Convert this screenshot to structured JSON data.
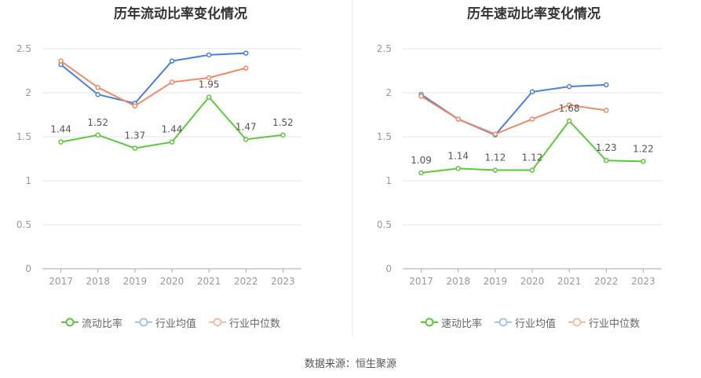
{
  "source_label": "数据来源：恒生聚源",
  "colors": {
    "primary": "#5cc93d",
    "avg": "#4a7fe0",
    "median": "#f08a63",
    "grid": "#e6e6e6",
    "axis": "#999999",
    "label": "#555555"
  },
  "chart_data": [
    {
      "type": "line",
      "title": "历年流动比率变化情况",
      "x": [
        "2017",
        "2018",
        "2019",
        "2020",
        "2021",
        "2022",
        "2023"
      ],
      "ylim": [
        0,
        2.5
      ],
      "yticks": [
        "0",
        "0.5",
        "1",
        "1.5",
        "2",
        "2.5"
      ],
      "grid": true,
      "legend_position": "bottom",
      "series": [
        {
          "name": "流动比率",
          "values": [
            1.44,
            1.52,
            1.37,
            1.44,
            1.95,
            1.47,
            1.52
          ],
          "labels": [
            "1.44",
            "1.52",
            "1.37",
            "1.44",
            "1.95",
            "1.47",
            "1.52"
          ],
          "color": "#5cc93d"
        },
        {
          "name": "行业均值",
          "values": [
            2.32,
            1.98,
            1.88,
            2.36,
            2.43,
            2.45,
            null
          ],
          "color": "#4a7fe0"
        },
        {
          "name": "行业中位数",
          "values": [
            2.36,
            2.06,
            1.85,
            2.12,
            2.17,
            2.28,
            null
          ],
          "color": "#f08a63"
        }
      ]
    },
    {
      "type": "line",
      "title": "历年速动比率变化情况",
      "x": [
        "2017",
        "2018",
        "2019",
        "2020",
        "2021",
        "2022",
        "2023"
      ],
      "ylim": [
        0,
        2.5
      ],
      "yticks": [
        "0",
        "0.5",
        "1",
        "1.5",
        "2",
        "2.5"
      ],
      "grid": true,
      "legend_position": "bottom",
      "series": [
        {
          "name": "速动比率",
          "values": [
            1.09,
            1.14,
            1.12,
            1.12,
            1.68,
            1.23,
            1.22
          ],
          "labels": [
            "1.09",
            "1.14",
            "1.12",
            "1.12",
            "1.68",
            "1.23",
            "1.22"
          ],
          "color": "#5cc93d"
        },
        {
          "name": "行业均值",
          "values": [
            1.98,
            1.7,
            1.52,
            2.01,
            2.07,
            2.09,
            null
          ],
          "color": "#4a7fe0"
        },
        {
          "name": "行业中位数",
          "values": [
            1.96,
            1.7,
            1.53,
            1.7,
            1.86,
            1.8,
            null
          ],
          "color": "#f08a63"
        }
      ]
    }
  ]
}
